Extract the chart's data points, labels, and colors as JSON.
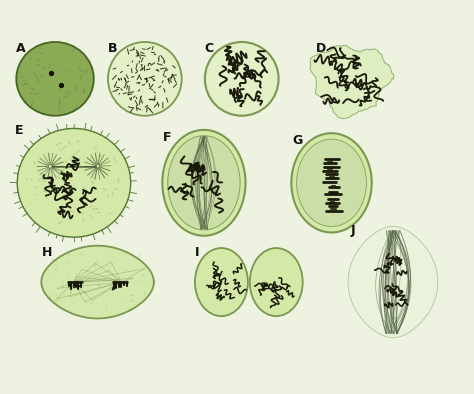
{
  "background_color": "#eef2e0",
  "cell_green_dark": "#8aaa55",
  "cell_green_mid": "#b0c878",
  "cell_green_light": "#d4e8a8",
  "cell_green_pale": "#e4f0c8",
  "chrom_color": "#1a1a0a",
  "label_color": "#111111",
  "label_fontsize": 9,
  "labels": [
    "A",
    "B",
    "C",
    "D",
    "E",
    "F",
    "G",
    "H",
    "I",
    "J"
  ],
  "figsize": [
    4.74,
    3.94
  ],
  "dpi": 100
}
